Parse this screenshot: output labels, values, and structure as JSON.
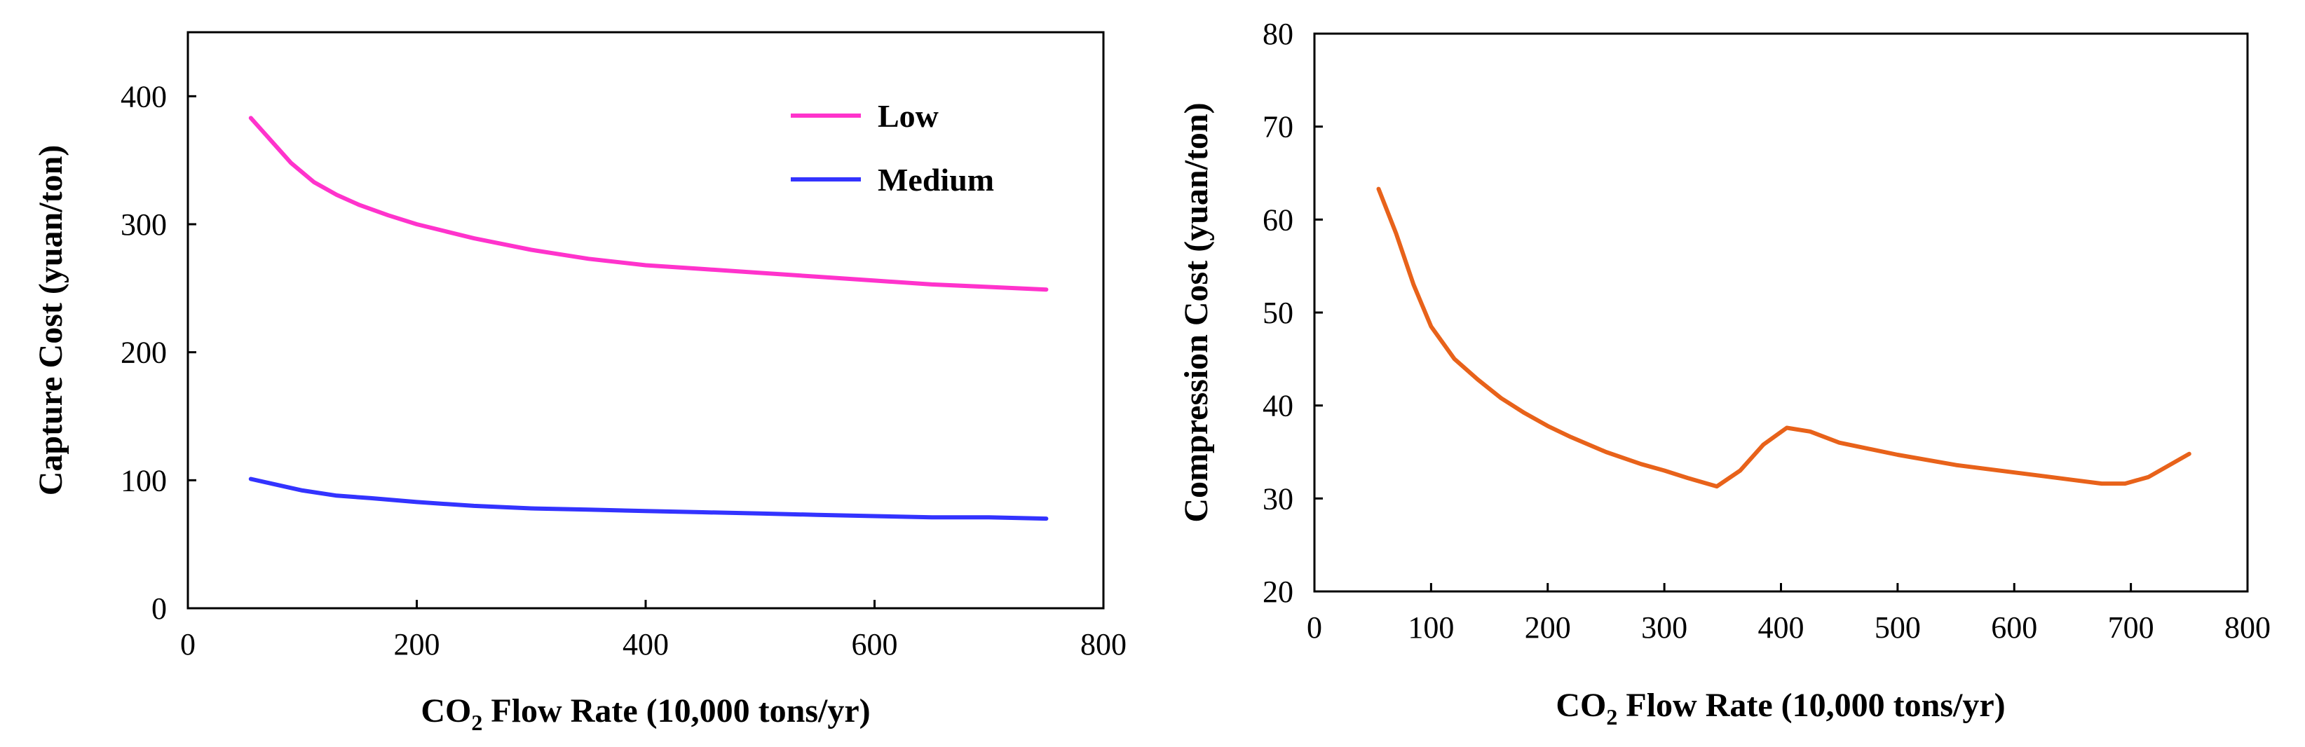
{
  "chart_data": [
    {
      "type": "line",
      "title": "",
      "xlabel_prefix": "CO",
      "xlabel_sub": "2",
      "xlabel_suffix": " Flow Rate (10,000 tons/yr)",
      "ylabel": "Capture Cost (yuan/ton)",
      "xlim": [
        0,
        800
      ],
      "ylim": [
        0,
        450
      ],
      "xticks": [
        0,
        200,
        400,
        600,
        800
      ],
      "yticks": [
        0,
        100,
        200,
        300,
        400
      ],
      "grid": false,
      "legend_position": "top-right",
      "series": [
        {
          "name": "Low",
          "color": "#ff33cc",
          "x": [
            55,
            70,
            90,
            110,
            130,
            150,
            175,
            200,
            250,
            300,
            350,
            400,
            450,
            500,
            550,
            600,
            650,
            700,
            750
          ],
          "y": [
            383,
            368,
            348,
            333,
            323,
            315,
            307,
            300,
            289,
            280,
            273,
            268,
            265,
            262,
            259,
            256,
            253,
            251,
            249
          ]
        },
        {
          "name": "Medium",
          "color": "#3333ff",
          "x": [
            55,
            75,
            100,
            130,
            160,
            200,
            250,
            300,
            350,
            400,
            450,
            500,
            550,
            600,
            650,
            700,
            750
          ],
          "y": [
            101,
            97,
            92,
            88,
            86,
            83,
            80,
            78,
            77,
            76,
            75,
            74,
            73,
            72,
            71,
            71,
            70
          ]
        }
      ]
    },
    {
      "type": "line",
      "title": "",
      "xlabel_prefix": "CO",
      "xlabel_sub": "2",
      "xlabel_suffix": " Flow Rate (10,000 tons/yr)",
      "ylabel": "Compression Cost (yuan/ton)",
      "xlim": [
        0,
        800
      ],
      "ylim": [
        20,
        80
      ],
      "xticks": [
        0,
        100,
        200,
        300,
        400,
        500,
        600,
        700,
        800
      ],
      "yticks": [
        20,
        30,
        40,
        50,
        60,
        70,
        80
      ],
      "grid": false,
      "series": [
        {
          "name": "Compression Cost",
          "color": "#e8621a",
          "x": [
            55,
            70,
            85,
            100,
            120,
            140,
            160,
            180,
            200,
            220,
            250,
            280,
            300,
            320,
            345,
            365,
            385,
            405,
            425,
            450,
            500,
            550,
            600,
            650,
            675,
            695,
            715,
            750
          ],
          "y": [
            63.3,
            58.5,
            53.0,
            48.5,
            45.0,
            42.8,
            40.8,
            39.2,
            37.8,
            36.6,
            35.0,
            33.7,
            33.0,
            32.2,
            31.3,
            33.0,
            35.8,
            37.6,
            37.2,
            36.0,
            34.7,
            33.6,
            32.8,
            32.0,
            31.6,
            31.6,
            32.3,
            34.8
          ]
        }
      ]
    }
  ]
}
